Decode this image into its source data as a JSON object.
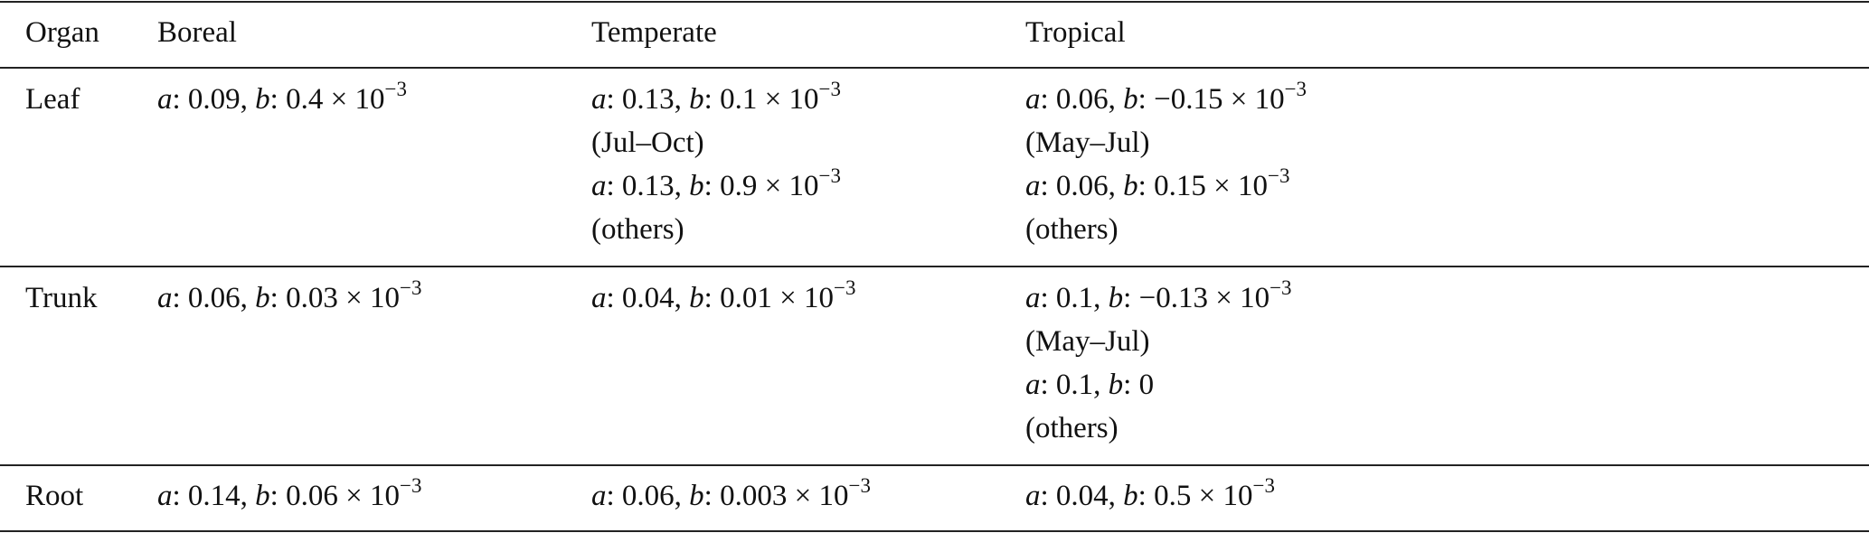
{
  "table": {
    "headers": [
      "Organ",
      "Boreal",
      "Temperate",
      "Tropical"
    ],
    "rows": [
      {
        "organ": "Leaf",
        "boreal": [
          {
            "a": "0.09",
            "b": "0.4 × 10",
            "exp": "−3"
          }
        ],
        "temperate": [
          {
            "a": "0.13",
            "b": "0.1 × 10",
            "exp": "−3",
            "period": "(Jul–Oct)"
          },
          {
            "a": "0.13",
            "b": "0.9 × 10",
            "exp": "−3",
            "period": "(others)"
          }
        ],
        "tropical": [
          {
            "a": "0.06",
            "b": "−0.15 × 10",
            "exp": "−3",
            "period": "(May–Jul)"
          },
          {
            "a": "0.06",
            "b": "0.15 × 10",
            "exp": "−3",
            "period": "(others)"
          }
        ]
      },
      {
        "organ": "Trunk",
        "boreal": [
          {
            "a": "0.06",
            "b": "0.03 × 10",
            "exp": "−3"
          }
        ],
        "temperate": [
          {
            "a": "0.04",
            "b": "0.01 × 10",
            "exp": "−3"
          }
        ],
        "tropical": [
          {
            "a": "0.1",
            "b": "−0.13 × 10",
            "exp": "−3",
            "period": "(May–Jul)"
          },
          {
            "a": "0.1",
            "b": "0",
            "exp": "",
            "period": "(others)"
          }
        ]
      },
      {
        "organ": "Root",
        "boreal": [
          {
            "a": "0.14",
            "b": "0.06 × 10",
            "exp": "−3"
          }
        ],
        "temperate": [
          {
            "a": "0.06",
            "b": "0.003 × 10",
            "exp": "−3"
          }
        ],
        "tropical": [
          {
            "a": "0.04",
            "b": "0.5 × 10",
            "exp": "−3"
          }
        ]
      }
    ]
  }
}
